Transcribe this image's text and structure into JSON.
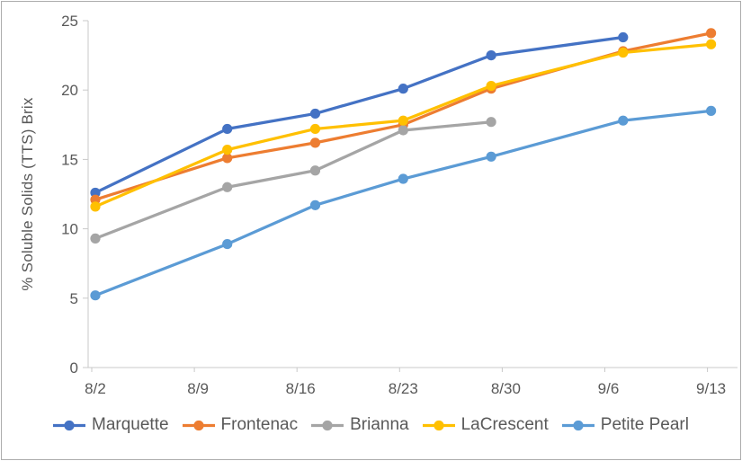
{
  "chart_data": {
    "type": "line",
    "ylabel": "% Soluble Solids (TTS) Brix",
    "ylim": [
      0,
      25
    ],
    "y_ticks": [
      0,
      5,
      10,
      15,
      20,
      25
    ],
    "x_tick_labels": [
      "8/2",
      "8/9",
      "8/16",
      "8/23",
      "8/30",
      "9/6",
      "9/13"
    ],
    "x_tick_day_offsets": [
      0,
      7,
      14,
      21,
      28,
      35,
      42
    ],
    "x_dates": [
      "8/2",
      "8/11",
      "8/17",
      "8/23",
      "8/29",
      "9/7",
      "9/13"
    ],
    "x_day_offsets": [
      0,
      9,
      15,
      21,
      27,
      36,
      42
    ],
    "grid": false,
    "legend_position": "bottom",
    "series": [
      {
        "name": "Marquette",
        "color": "#4472C4",
        "values": [
          12.6,
          17.2,
          18.3,
          20.1,
          22.5,
          23.8,
          null
        ]
      },
      {
        "name": "Frontenac",
        "color": "#ED7D31",
        "values": [
          12.1,
          15.1,
          16.2,
          17.5,
          20.1,
          22.8,
          24.1
        ]
      },
      {
        "name": "Brianna",
        "color": "#A5A5A5",
        "values": [
          9.3,
          13.0,
          14.2,
          17.1,
          17.7,
          null,
          null
        ]
      },
      {
        "name": "LaCrescent",
        "color": "#FFC000",
        "values": [
          11.6,
          15.7,
          17.2,
          17.8,
          20.3,
          22.7,
          23.3
        ]
      },
      {
        "name": "Petite Pearl",
        "color": "#5B9BD5",
        "values": [
          5.2,
          8.9,
          11.7,
          13.6,
          15.2,
          17.8,
          18.5
        ]
      }
    ],
    "axis_color": "#c9c9c9",
    "label_color": "#595959"
  }
}
